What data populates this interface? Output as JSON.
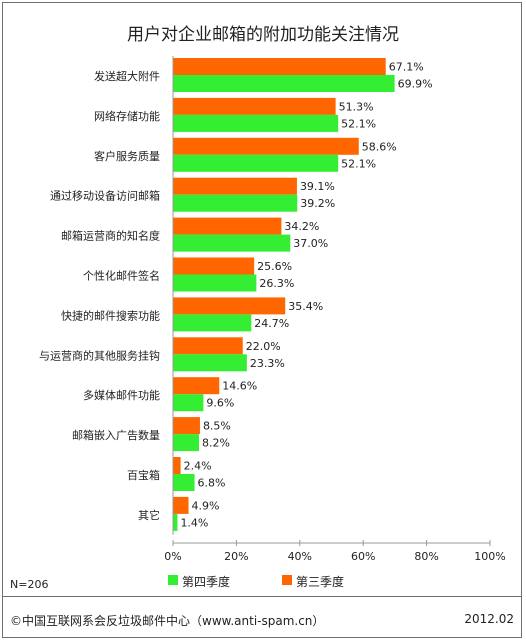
{
  "title": "用户对企业邮箱的附加功能关注情况",
  "sample_note": "N=206",
  "footer": {
    "source": "©中国互联网系会反垃圾邮件中心（www.anti-spam.cn）",
    "date": "2012.02"
  },
  "colors": {
    "q3": "#ff6600",
    "q4": "#33ee33",
    "axis": "#999999",
    "frame": "#6e6e6e"
  },
  "chart_data": {
    "type": "bar",
    "orientation": "horizontal",
    "title": "用户对企业邮箱的附加功能关注情况",
    "categories": [
      "发送超大附件",
      "网络存储功能",
      "客户服务质量",
      "通过移动设备访问邮箱",
      "邮箱运营商的知名度",
      "个性化邮件签名",
      "快捷的邮件搜索功能",
      "与运营商的其他服务挂钩",
      "多媒体邮件功能",
      "邮箱嵌入广告数量",
      "百宝箱",
      "其它"
    ],
    "series": [
      {
        "name": "第三季度",
        "color": "#ff6600",
        "values": [
          67.1,
          51.3,
          58.6,
          39.1,
          34.2,
          25.6,
          35.4,
          22.0,
          14.6,
          8.5,
          2.4,
          4.9
        ]
      },
      {
        "name": "第四季度",
        "color": "#33ee33",
        "values": [
          69.9,
          52.1,
          52.1,
          39.2,
          37.0,
          26.3,
          24.7,
          23.3,
          9.6,
          8.2,
          6.8,
          1.4
        ]
      }
    ],
    "xlim": [
      0,
      100
    ],
    "xticks": [
      "0%",
      "20%",
      "40%",
      "60%",
      "80%",
      "100%"
    ],
    "legend": [
      "第四季度",
      "第三季度"
    ],
    "legend_position": "bottom",
    "grid": false
  }
}
